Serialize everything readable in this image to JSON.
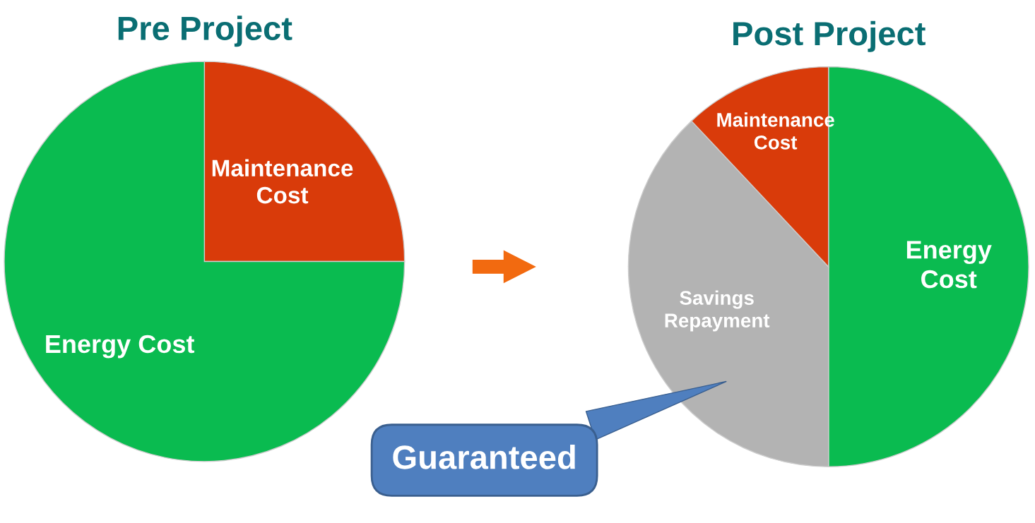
{
  "chart_data": [
    {
      "type": "pie",
      "title": "Pre Project",
      "categories": [
        "Maintenance\nCost",
        "Energy Cost"
      ],
      "values": [
        25,
        75
      ],
      "colors": [
        "#d93b0a",
        "#0abb50"
      ],
      "data_labels": false,
      "legend": false
    },
    {
      "type": "pie",
      "title": "Post Project",
      "categories": [
        "Energy\nCost",
        "Savings\nRepayment",
        "Maintenance\nCost"
      ],
      "values": [
        50,
        38,
        12
      ],
      "colors": [
        "#0abb50",
        "#b3b3b3",
        "#d93b0a"
      ],
      "data_labels": false,
      "legend": false,
      "annotations": [
        {
          "text": "Guaranteed",
          "x": "Savings\nRepayment"
        }
      ]
    }
  ]
}
